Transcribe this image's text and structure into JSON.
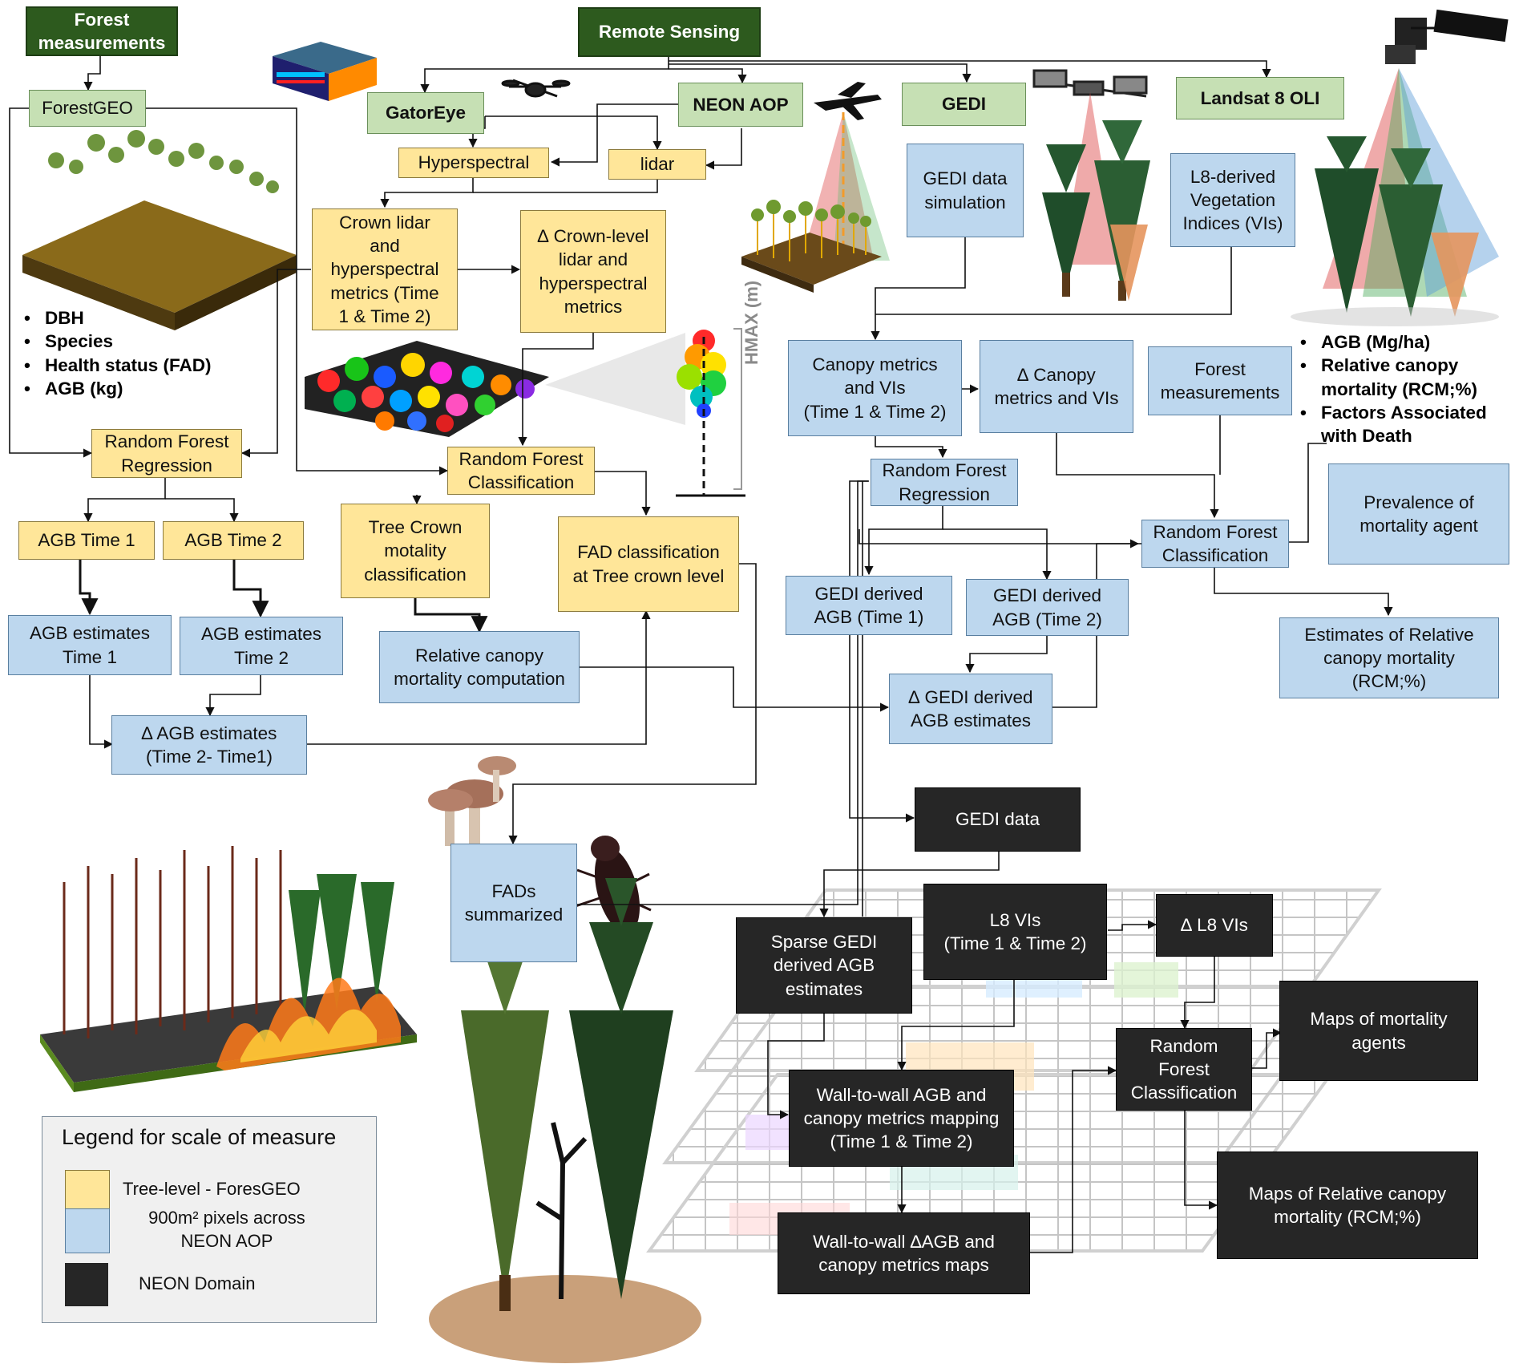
{
  "headers": {
    "forest_measurements": "Forest measurements",
    "remote_sensing": "Remote Sensing"
  },
  "sources": {
    "forestgeo": "ForestGEO",
    "gatoreye": "GatorEye",
    "neon_aop": "NEON AOP",
    "gedi": "GEDI",
    "landsat": "Landsat 8 OLI"
  },
  "field_list": [
    "DBH",
    "Species",
    "Health status (FAD)",
    "AGB (kg)"
  ],
  "tree_level": {
    "hyperspectral": "Hyperspectral",
    "lidar": "lidar",
    "crown_metrics": "Crown lidar\nand\nhyperspectral\nmetrics (Time\n1 & Time 2)",
    "delta_crown": "∆ Crown-level\nlidar and\nhyperspectral\nmetrics",
    "rf_regression": "Random Forest\nRegression",
    "rf_classification": "Random Forest\nClassification",
    "agb_t1": "AGB Time 1",
    "agb_t2": "AGB Time 2",
    "tree_crown_class": "Tree Crown\nmotality\nclassification",
    "fad_class": "FAD classification\nat Tree crown level"
  },
  "pixel_level": {
    "agb_est_t1": "AGB estimates\nTime 1",
    "agb_est_t2": "AGB estimates\nTime 2",
    "delta_agb": "∆ AGB estimates\n(Time 2- Time1)",
    "rel_canopy": "Relative canopy\nmortality computation",
    "fads_summarized": "FADs\nsummarized",
    "gedi_sim": "GEDI data\nsimulation",
    "l8_vis": "L8-derived\nVegetation\nIndices (VIs)",
    "canopy_metrics": "Canopy metrics\nand VIs\n(Time 1 & Time 2)",
    "delta_canopy": "∆ Canopy\nmetrics and VIs",
    "forest_meas": "Forest\nmeasurements",
    "rf_regression": "Random Forest\nRegression",
    "rf_classification": "Random Forest\nClassification",
    "prevalence": "Prevalence of\nmortality agent",
    "gedi_agb_t1": "GEDI derived\nAGB (Time 1)",
    "gedi_agb_t2": "GEDI derived\nAGB (Time 2)",
    "delta_gedi": "∆ GEDI derived\nAGB estimates",
    "est_rcm": "Estimates of Relative\ncanopy mortality\n(RCM;%)"
  },
  "outcome_list": [
    "AGB (Mg/ha)",
    "Relative canopy mortality (RCM;%)",
    "Factors Associated with Death"
  ],
  "domain_level": {
    "gedi_data": "GEDI data",
    "sparse_gedi": "Sparse GEDI\nderived AGB\nestimates",
    "l8_vis": "L8 VIs\n(Time 1 & Time 2)",
    "delta_l8": "∆ L8 VIs",
    "rf_classification": "Random\nForest\nClassification",
    "maps_agents": "Maps of mortality\nagents",
    "wall_mapping": "Wall-to-wall AGB and\ncanopy metrics mapping\n(Time 1 & Time 2)",
    "maps_rcm": "Maps of Relative canopy\nmortality (RCM;%)",
    "wall_delta": "Wall-to-wall ∆AGB and\ncanopy metrics maps"
  },
  "hmax_label": "HMAX (m)",
  "legend": {
    "title": "Legend for scale of measure",
    "items": [
      {
        "color": "#ffe699",
        "label": "Tree-level - ForesGEO"
      },
      {
        "color": "#bdd7ee",
        "label": "900m² pixels across\nNEON AOP"
      },
      {
        "color": "#262626",
        "label": "NEON Domain"
      }
    ]
  },
  "colors": {
    "tree_level": "#ffe699",
    "pixel_level": "#bdd7ee",
    "domain_level": "#262626",
    "source": "#c6e0b4",
    "header": "#2d5a1e"
  }
}
